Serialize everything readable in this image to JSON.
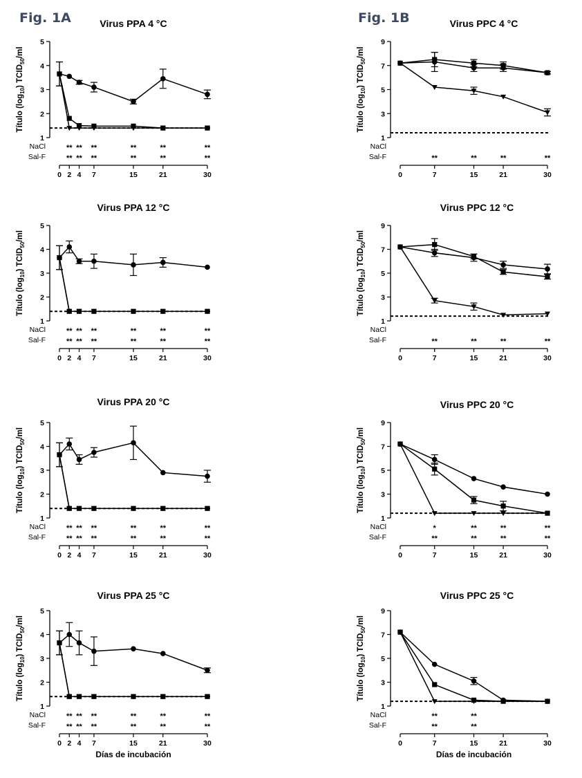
{
  "figure": {
    "label_a": "Fig. 1A",
    "label_b": "Fig. 1B"
  },
  "xlabel": "Días de incubación",
  "ylabel_parts": [
    "Título (log",
    "10",
    ") TCID",
    "50",
    "/ml"
  ],
  "sig_labels": [
    "NaCl",
    "Sal-F"
  ],
  "chart_data": [
    {
      "type": "line",
      "title": "Virus PPA  4 °C",
      "x": [
        0,
        2,
        4,
        7,
        15,
        21,
        30
      ],
      "ylim": [
        1,
        5
      ],
      "yticks": [
        1,
        2,
        3,
        4,
        5
      ],
      "detection_limit": 1.4,
      "series": [
        {
          "marker": "circle",
          "values": [
            3.65,
            3.55,
            3.3,
            3.1,
            2.5,
            3.45,
            2.8
          ],
          "errors": [
            0.5,
            0,
            0.08,
            0.2,
            0.1,
            0.4,
            0.18
          ]
        },
        {
          "marker": "square",
          "values": [
            3.65,
            1.8,
            1.5,
            1.48,
            1.48,
            1.4,
            1.4
          ],
          "errors": [
            0.5,
            0,
            0,
            0,
            0,
            0,
            0
          ]
        },
        {
          "marker": "triangle",
          "values": [
            3.65,
            1.4,
            1.4,
            1.4,
            1.4,
            1.4,
            1.4
          ],
          "errors": [
            0,
            0,
            0,
            0,
            0,
            0,
            0
          ]
        }
      ],
      "significance": {
        "NaCl": [
          "",
          "**",
          "**",
          "**",
          "**",
          "**",
          "**"
        ],
        "Sal-F": [
          "",
          "**",
          "**",
          "**",
          "**",
          "**",
          "**"
        ]
      }
    },
    {
      "type": "line",
      "title": "Virus PPC  4 °C",
      "x": [
        0,
        7,
        15,
        21,
        30
      ],
      "ylim": [
        1,
        9
      ],
      "yticks": [
        1,
        3,
        5,
        7,
        9
      ],
      "detection_limit": 1.4,
      "series": [
        {
          "marker": "circle",
          "values": [
            7.2,
            7.3,
            6.8,
            6.8,
            6.4
          ],
          "errors": [
            0,
            0.8,
            0.3,
            0.3,
            0.1
          ]
        },
        {
          "marker": "square",
          "values": [
            7.2,
            7.5,
            7.2,
            7.0,
            6.4
          ],
          "errors": [
            0,
            0.6,
            0.3,
            0.3,
            0.1
          ]
        },
        {
          "marker": "triangle",
          "values": [
            7.2,
            5.2,
            4.9,
            4.4,
            3.1
          ],
          "errors": [
            0,
            0,
            0.3,
            0,
            0.3
          ]
        }
      ],
      "significance": {
        "NaCl": [
          "",
          "",
          "",
          "",
          ""
        ],
        "Sal-F": [
          "",
          "**",
          "**",
          "**",
          "**"
        ]
      }
    },
    {
      "type": "line",
      "title": "Virus PPA  12 °C",
      "x": [
        0,
        2,
        4,
        7,
        15,
        21,
        30
      ],
      "ylim": [
        1,
        5
      ],
      "yticks": [
        1,
        2,
        3,
        4,
        5
      ],
      "detection_limit": 1.4,
      "series": [
        {
          "marker": "circle",
          "values": [
            3.65,
            4.1,
            3.5,
            3.5,
            3.35,
            3.45,
            3.25
          ],
          "errors": [
            0.5,
            0.25,
            0.1,
            0.3,
            0.45,
            0.2,
            0
          ]
        },
        {
          "marker": "square",
          "values": [
            3.65,
            1.4,
            1.4,
            1.4,
            1.4,
            1.4,
            1.4
          ],
          "errors": [
            0.5,
            0,
            0,
            0,
            0,
            0,
            0
          ]
        },
        {
          "marker": "triangle",
          "values": [
            3.65,
            1.4,
            1.4,
            1.4,
            1.4,
            1.4,
            1.4
          ],
          "errors": [
            0,
            0,
            0,
            0,
            0,
            0,
            0
          ]
        }
      ],
      "significance": {
        "NaCl": [
          "",
          "**",
          "**",
          "**",
          "**",
          "**",
          "**"
        ],
        "Sal-F": [
          "",
          "**",
          "**",
          "**",
          "**",
          "**",
          "**"
        ]
      }
    },
    {
      "type": "line",
      "title": "Virus PPC  12 °C",
      "x": [
        0,
        7,
        15,
        21,
        30
      ],
      "ylim": [
        1,
        9
      ],
      "yticks": [
        1,
        3,
        5,
        7,
        9
      ],
      "detection_limit": 1.4,
      "series": [
        {
          "marker": "circle",
          "values": [
            7.2,
            6.7,
            6.3,
            5.7,
            5.35
          ],
          "errors": [
            0,
            0.3,
            0.3,
            0.3,
            0.4
          ]
        },
        {
          "marker": "square",
          "values": [
            7.2,
            7.4,
            6.4,
            5.1,
            4.7
          ],
          "errors": [
            0,
            0.5,
            0.2,
            0.2,
            0.2
          ]
        },
        {
          "marker": "triangle",
          "values": [
            7.2,
            2.7,
            2.2,
            1.5,
            1.6
          ],
          "errors": [
            0,
            0.2,
            0.3,
            0,
            0
          ]
        }
      ],
      "significance": {
        "NaCl": [
          "",
          "",
          "",
          "",
          ""
        ],
        "Sal-F": [
          "",
          "**",
          "**",
          "**",
          "**"
        ]
      }
    },
    {
      "type": "line",
      "title": "Virus PPA  20 °C",
      "x": [
        0,
        2,
        4,
        7,
        15,
        21,
        30
      ],
      "ylim": [
        1,
        5
      ],
      "yticks": [
        1,
        2,
        3,
        4,
        5
      ],
      "detection_limit": 1.4,
      "series": [
        {
          "marker": "circle",
          "values": [
            3.65,
            4.1,
            3.45,
            3.75,
            4.15,
            2.9,
            2.75
          ],
          "errors": [
            0.5,
            0.25,
            0.2,
            0.2,
            0.7,
            0,
            0.25
          ]
        },
        {
          "marker": "square",
          "values": [
            3.65,
            1.4,
            1.4,
            1.4,
            1.4,
            1.4,
            1.4
          ],
          "errors": [
            0.5,
            0,
            0,
            0,
            0,
            0,
            0
          ]
        },
        {
          "marker": "triangle",
          "values": [
            3.65,
            1.4,
            1.4,
            1.4,
            1.4,
            1.4,
            1.4
          ],
          "errors": [
            0,
            0,
            0,
            0,
            0,
            0,
            0
          ]
        }
      ],
      "significance": {
        "NaCl": [
          "",
          "**",
          "**",
          "**",
          "**",
          "**",
          "**"
        ],
        "Sal-F": [
          "",
          "**",
          "**",
          "**",
          "**",
          "**",
          "**"
        ]
      }
    },
    {
      "type": "line",
      "title": "Virus PPC  20 °C",
      "x": [
        0,
        7,
        15,
        21,
        30
      ],
      "ylim": [
        1,
        9
      ],
      "yticks": [
        1,
        3,
        5,
        7,
        9
      ],
      "detection_limit": 1.4,
      "series": [
        {
          "marker": "circle",
          "values": [
            7.2,
            5.9,
            4.3,
            3.6,
            3.0
          ],
          "errors": [
            0,
            0.4,
            0,
            0,
            0
          ]
        },
        {
          "marker": "square",
          "values": [
            7.2,
            5.1,
            2.5,
            2.0,
            1.4
          ],
          "errors": [
            0,
            0.5,
            0.3,
            0.4,
            0
          ]
        },
        {
          "marker": "triangle",
          "values": [
            7.2,
            1.4,
            1.4,
            1.4,
            1.4
          ],
          "errors": [
            0,
            0,
            0,
            0,
            0
          ]
        }
      ],
      "significance": {
        "NaCl": [
          "",
          "*",
          "**",
          "**",
          "**"
        ],
        "Sal-F": [
          "",
          "**",
          "**",
          "**",
          "**"
        ]
      }
    },
    {
      "type": "line",
      "title": "Virus PPA  25 °C",
      "x": [
        0,
        2,
        4,
        7,
        15,
        21,
        30
      ],
      "ylim": [
        1,
        5
      ],
      "yticks": [
        1,
        2,
        3,
        4,
        5
      ],
      "detection_limit": 1.4,
      "series": [
        {
          "marker": "circle",
          "values": [
            3.65,
            4.0,
            3.65,
            3.3,
            3.4,
            3.2,
            2.5
          ],
          "errors": [
            0.5,
            0.5,
            0.5,
            0.6,
            0,
            0,
            0.1
          ]
        },
        {
          "marker": "square",
          "values": [
            3.65,
            1.4,
            1.4,
            1.4,
            1.4,
            1.4,
            1.4
          ],
          "errors": [
            0.5,
            0,
            0,
            0,
            0,
            0,
            0
          ]
        },
        {
          "marker": "triangle",
          "values": [
            3.65,
            1.4,
            1.4,
            1.4,
            1.4,
            1.4,
            1.4
          ],
          "errors": [
            0,
            0,
            0,
            0,
            0,
            0,
            0
          ]
        }
      ],
      "significance": {
        "NaCl": [
          "",
          "**",
          "**",
          "**",
          "**",
          "**",
          "**"
        ],
        "Sal-F": [
          "",
          "**",
          "**",
          "**",
          "**",
          "**",
          "**"
        ]
      }
    },
    {
      "type": "line",
      "title": "Virus PPC  25 °C",
      "x": [
        0,
        7,
        15,
        21,
        30
      ],
      "ylim": [
        1,
        9
      ],
      "yticks": [
        1,
        3,
        5,
        7,
        9
      ],
      "detection_limit": 1.4,
      "series": [
        {
          "marker": "circle",
          "values": [
            7.2,
            4.5,
            3.1,
            1.5,
            1.4
          ],
          "errors": [
            0,
            0,
            0.3,
            0,
            0
          ]
        },
        {
          "marker": "square",
          "values": [
            7.2,
            2.8,
            1.5,
            1.4,
            1.4
          ],
          "errors": [
            0,
            0,
            0,
            0,
            0
          ]
        },
        {
          "marker": "triangle",
          "values": [
            7.2,
            1.4,
            1.4,
            1.4,
            1.4
          ],
          "errors": [
            0,
            0,
            0,
            0,
            0
          ]
        }
      ],
      "significance": {
        "NaCl": [
          "",
          "**",
          "**",
          "",
          ""
        ],
        "Sal-F": [
          "",
          "**",
          "**",
          "",
          ""
        ]
      }
    }
  ]
}
